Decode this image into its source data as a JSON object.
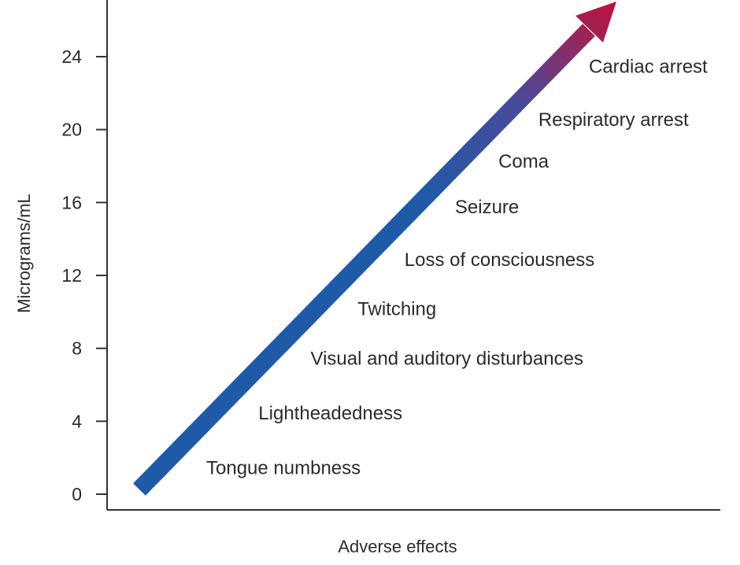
{
  "chart_data": {
    "type": "annotated-arrow",
    "ylabel": "Micrograms/mL",
    "xlabel": "Adverse effects",
    "ylim": [
      0,
      26
    ],
    "yticks": [
      0,
      4,
      8,
      12,
      16,
      20,
      24
    ],
    "effects": [
      {
        "label": "Tongue numbness",
        "y": 1.5
      },
      {
        "label": "Lightheadedness",
        "y": 4.5
      },
      {
        "label": "Visual and auditory disturbances",
        "y": 7.5
      },
      {
        "label": "Twitching",
        "y": 10.2
      },
      {
        "label": "Loss of consciousness",
        "y": 12.9
      },
      {
        "label": "Seizure",
        "y": 15.8
      },
      {
        "label": "Coma",
        "y": 18.3
      },
      {
        "label": "Respiratory arrest",
        "y": 20.6
      },
      {
        "label": "Cardiac arrest",
        "y": 23.5
      }
    ],
    "arrow_gradient": {
      "low": "#1f5aa8",
      "mid": "#4a4a9a",
      "high": "#c0123c"
    }
  }
}
